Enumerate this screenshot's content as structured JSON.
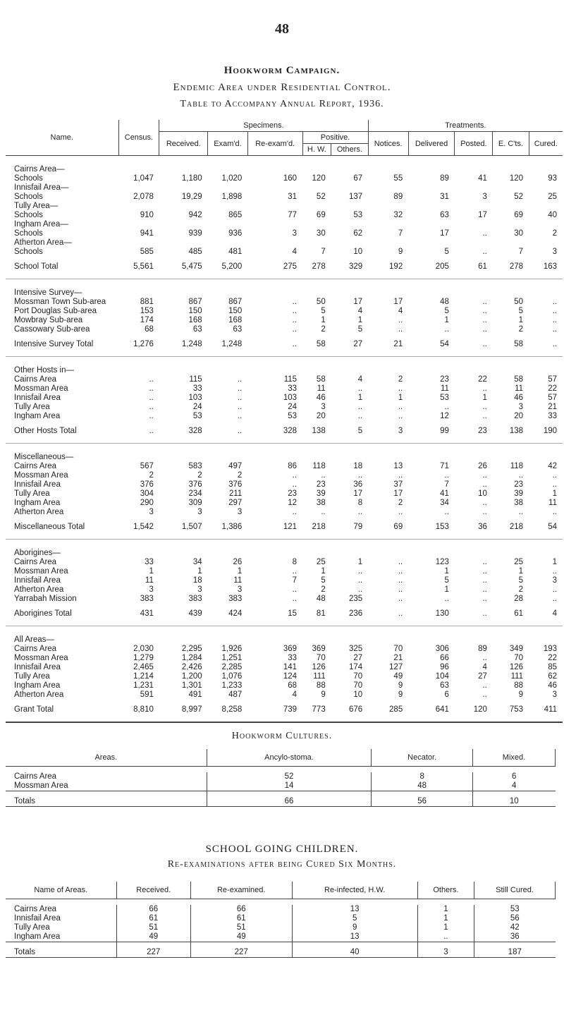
{
  "page_number": "48",
  "title": "Hookworm Campaign.",
  "subtitle": "Endemic Area under Residential Control.",
  "caption": "Table to Accompany Annual Report, 1936.",
  "main_table": {
    "headers": {
      "name": "Name.",
      "census": "Census.",
      "specimens": "Specimens.",
      "received": "Received.",
      "examined": "Exam'd.",
      "reexamined": "Re-exam'd.",
      "positive": "Positive.",
      "hw": "H. W.",
      "others": "Others.",
      "treatments": "Treatments.",
      "notices": "Notices.",
      "delivered": "Delivered",
      "posted": "Posted.",
      "ects": "E. C'ts.",
      "cured": "Cured."
    },
    "sections": [
      {
        "rows": [
          {
            "group": "Cairns Area—",
            "label": "Schools",
            "cells": [
              "1,047",
              "1,180",
              "1,020",
              "160",
              "120",
              "67",
              "55",
              "89",
              "41",
              "120",
              "93"
            ]
          },
          {
            "group": "Innisfail Area—",
            "label": "Schools",
            "cells": [
              "2,078",
              "19,29",
              "1,898",
              "31",
              "52",
              "137",
              "89",
              "31",
              "3",
              "52",
              "25"
            ]
          },
          {
            "group": "Tully Area—",
            "label": "Schools",
            "cells": [
              "910",
              "942",
              "865",
              "77",
              "69",
              "53",
              "32",
              "63",
              "17",
              "69",
              "40"
            ]
          },
          {
            "group": "Ingham Area—",
            "label": "Schools",
            "cells": [
              "941",
              "939",
              "936",
              "3",
              "30",
              "62",
              "7",
              "17",
              "..",
              "30",
              "2"
            ]
          },
          {
            "group": "Atherton Area—",
            "label": "Schools",
            "cells": [
              "585",
              "485",
              "481",
              "4",
              "7",
              "10",
              "9",
              "5",
              "..",
              "7",
              "3"
            ]
          }
        ],
        "total": {
          "label": "School Total",
          "cells": [
            "5,561",
            "5,475",
            "5,200",
            "275",
            "278",
            "329",
            "192",
            "205",
            "61",
            "278",
            "163"
          ]
        }
      },
      {
        "heading": "Intensive Survey—",
        "rows": [
          {
            "label": "Mossman Town Sub-area",
            "cells": [
              "881",
              "867",
              "867",
              "..",
              "50",
              "17",
              "17",
              "48",
              "..",
              "50",
              ".."
            ]
          },
          {
            "label": "Port Douglas Sub-area",
            "cells": [
              "153",
              "150",
              "150",
              "..",
              "5",
              "4",
              "4",
              "5",
              "..",
              "5",
              ".."
            ]
          },
          {
            "label": "Mowbray Sub-area",
            "cells": [
              "174",
              "168",
              "168",
              "..",
              "1",
              "1",
              "..",
              "1",
              "..",
              "1",
              ".."
            ]
          },
          {
            "label": "Cassowary Sub-area",
            "cells": [
              "68",
              "63",
              "63",
              "..",
              "2",
              "5",
              "..",
              "..",
              "..",
              "2",
              ".."
            ]
          }
        ],
        "total": {
          "label": "Intensive Survey Total",
          "cells": [
            "1,276",
            "1,248",
            "1,248",
            "..",
            "58",
            "27",
            "21",
            "54",
            "..",
            "58",
            ".."
          ]
        }
      },
      {
        "heading": "Other Hosts in—",
        "rows": [
          {
            "label": "Cairns Area",
            "cells": [
              "..",
              "115",
              "..",
              "115",
              "58",
              "4",
              "2",
              "23",
              "22",
              "58",
              "57"
            ]
          },
          {
            "label": "Mossman Area",
            "cells": [
              "..",
              "33",
              "..",
              "33",
              "11",
              "..",
              "..",
              "11",
              "..",
              "11",
              "22"
            ]
          },
          {
            "label": "Innisfail Area",
            "cells": [
              "..",
              "103",
              "..",
              "103",
              "46",
              "1",
              "1",
              "53",
              "1",
              "46",
              "57"
            ]
          },
          {
            "label": "Tully Area",
            "cells": [
              "..",
              "24",
              "..",
              "24",
              "3",
              "..",
              "..",
              "..",
              "..",
              "3",
              "21"
            ]
          },
          {
            "label": "Ingham Area",
            "cells": [
              "..",
              "53",
              "..",
              "53",
              "20",
              "..",
              "..",
              "12",
              "..",
              "20",
              "33"
            ]
          }
        ],
        "total": {
          "label": "Other Hosts Total",
          "cells": [
            "..",
            "328",
            "..",
            "328",
            "138",
            "5",
            "3",
            "99",
            "23",
            "138",
            "190"
          ]
        }
      },
      {
        "heading": "Miscellaneous—",
        "rows": [
          {
            "label": "Cairns Area",
            "cells": [
              "567",
              "583",
              "497",
              "86",
              "118",
              "18",
              "13",
              "71",
              "26",
              "118",
              "42"
            ]
          },
          {
            "label": "Mossman Area",
            "cells": [
              "2",
              "2",
              "2",
              "..",
              "..",
              "..",
              "..",
              "..",
              "..",
              "..",
              ".."
            ]
          },
          {
            "label": "Innisfail Area",
            "cells": [
              "376",
              "376",
              "376",
              "..",
              "23",
              "36",
              "37",
              "7",
              "..",
              "23",
              ".."
            ]
          },
          {
            "label": "Tully Area",
            "cells": [
              "304",
              "234",
              "211",
              "23",
              "39",
              "17",
              "17",
              "41",
              "10",
              "39",
              "1"
            ]
          },
          {
            "label": "Ingham Area",
            "cells": [
              "290",
              "309",
              "297",
              "12",
              "38",
              "8",
              "2",
              "34",
              "..",
              "38",
              "11"
            ]
          },
          {
            "label": "Atherton Area",
            "cells": [
              "3",
              "3",
              "3",
              "..",
              "..",
              "..",
              "..",
              "..",
              "..",
              "..",
              ".."
            ]
          }
        ],
        "total": {
          "label": "Miscellaneous Total",
          "cells": [
            "1,542",
            "1,507",
            "1,386",
            "121",
            "218",
            "79",
            "69",
            "153",
            "36",
            "218",
            "54"
          ]
        }
      },
      {
        "heading": "Aborigines—",
        "rows": [
          {
            "label": "Cairns Area",
            "cells": [
              "33",
              "34",
              "26",
              "8",
              "25",
              "1",
              "..",
              "123",
              "..",
              "25",
              "1"
            ]
          },
          {
            "label": "Mossman Area",
            "cells": [
              "1",
              "1",
              "1",
              "..",
              "1",
              "..",
              "..",
              "1",
              "..",
              "1",
              ".."
            ]
          },
          {
            "label": "Innisfail Area",
            "cells": [
              "11",
              "18",
              "11",
              "7",
              "5",
              "..",
              "..",
              "5",
              "..",
              "5",
              "3"
            ]
          },
          {
            "label": "Atherton Area",
            "cells": [
              "3",
              "3",
              "3",
              "..",
              "2",
              "..",
              "..",
              "1",
              "..",
              "2",
              ".."
            ]
          },
          {
            "label": "Yarrabah Mission",
            "cells": [
              "383",
              "383",
              "383",
              "..",
              "48",
              "235",
              "..",
              "..",
              "..",
              "28",
              ".."
            ]
          }
        ],
        "total": {
          "label": "Aborigines Total",
          "cells": [
            "431",
            "439",
            "424",
            "15",
            "81",
            "236",
            "..",
            "130",
            "..",
            "61",
            "4"
          ]
        }
      },
      {
        "heading": "All Areas—",
        "rows": [
          {
            "label": "Cairns Area",
            "cells": [
              "2,030",
              "2,295",
              "1,926",
              "369",
              "369",
              "325",
              "70",
              "306",
              "89",
              "349",
              "193"
            ]
          },
          {
            "label": "Mossman Area",
            "cells": [
              "1,279",
              "1,284",
              "1,251",
              "33",
              "70",
              "27",
              "21",
              "66",
              "..",
              "70",
              "22"
            ]
          },
          {
            "label": "Innisfail Area",
            "cells": [
              "2,465",
              "2,426",
              "2,285",
              "141",
              "126",
              "174",
              "127",
              "96",
              "4",
              "126",
              "85"
            ]
          },
          {
            "label": "Tully Area",
            "cells": [
              "1,214",
              "1,200",
              "1,076",
              "124",
              "111",
              "70",
              "49",
              "104",
              "27",
              "111",
              "62"
            ]
          },
          {
            "label": "Ingham Area",
            "cells": [
              "1,231",
              "1,301",
              "1,233",
              "68",
              "88",
              "70",
              "9",
              "63",
              "..",
              "88",
              "46"
            ]
          },
          {
            "label": "Atherton Area",
            "cells": [
              "591",
              "491",
              "487",
              "4",
              "9",
              "10",
              "9",
              "6",
              "..",
              "9",
              "3"
            ]
          }
        ],
        "total": {
          "label": "Grant Total",
          "cells": [
            "8,810",
            "8,997",
            "8,258",
            "739",
            "773",
            "676",
            "285",
            "641",
            "120",
            "753",
            "411"
          ]
        }
      }
    ]
  },
  "cultures": {
    "title": "Hookworm Cultures.",
    "headers": [
      "Areas.",
      "Ancylo-stoma.",
      "Necator.",
      "Mixed."
    ],
    "rows": [
      [
        "Cairns Area",
        "52",
        "8",
        "6"
      ],
      [
        "Mossman Area",
        "14",
        "48",
        "4"
      ]
    ],
    "total": [
      "Totals",
      "66",
      "56",
      "10"
    ]
  },
  "school": {
    "title": "SCHOOL GOING CHILDREN.",
    "subtitle": "Re-examinations after being Cured Six Months.",
    "headers": [
      "Name of Areas.",
      "Received.",
      "Re-examined.",
      "Re-infected, H.W.",
      "Others.",
      "Still Cured."
    ],
    "rows": [
      [
        "Cairns Area",
        "66",
        "66",
        "13",
        "1",
        "53"
      ],
      [
        "Innisfail Area",
        "61",
        "61",
        "5",
        "1",
        "56"
      ],
      [
        "Tully Area",
        "51",
        "51",
        "9",
        "1",
        "42"
      ],
      [
        "Ingham Area",
        "49",
        "49",
        "13",
        "..",
        "36"
      ]
    ],
    "total": [
      "Totals",
      "227",
      "227",
      "40",
      "3",
      "187"
    ]
  }
}
